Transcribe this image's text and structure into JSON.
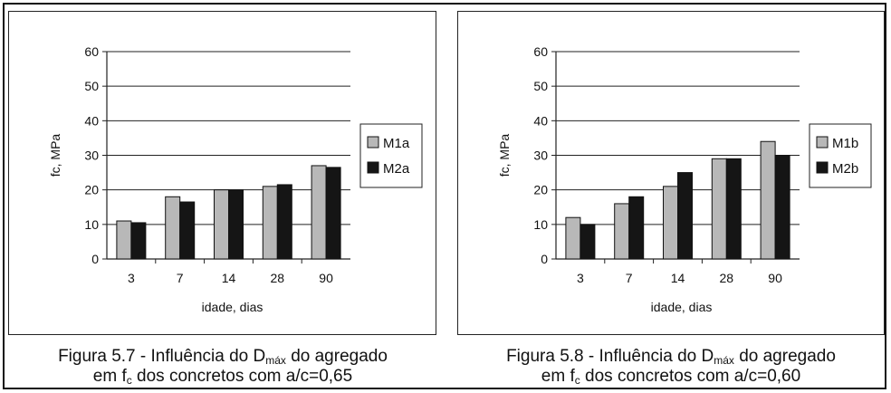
{
  "chart_data": [
    {
      "type": "bar",
      "title": "",
      "xlabel": "idade, dias",
      "ylabel": "fc, MPa",
      "categories": [
        "3",
        "7",
        "14",
        "28",
        "90"
      ],
      "ylim": [
        0,
        60
      ],
      "yticks": [
        "0",
        "10",
        "20",
        "30",
        "40",
        "50",
        "60"
      ],
      "grid": true,
      "legend_position": "right",
      "series": [
        {
          "name": "M1a",
          "values": [
            11,
            18,
            20,
            21,
            27
          ],
          "color": "#b8b8b8"
        },
        {
          "name": "M2a",
          "values": [
            10.5,
            16.5,
            20,
            21.5,
            26.5
          ],
          "color": "#151515"
        }
      ]
    },
    {
      "type": "bar",
      "title": "",
      "xlabel": "idade, dias",
      "ylabel": "fc, MPa",
      "categories": [
        "3",
        "7",
        "14",
        "28",
        "90"
      ],
      "ylim": [
        0,
        60
      ],
      "yticks": [
        "0",
        "10",
        "20",
        "30",
        "40",
        "50",
        "60"
      ],
      "grid": true,
      "legend_position": "right",
      "series": [
        {
          "name": "M1b",
          "values": [
            12,
            16,
            21,
            29,
            34
          ],
          "color": "#b8b8b8"
        },
        {
          "name": "M2b",
          "values": [
            10,
            18,
            25,
            29,
            30
          ],
          "color": "#151515"
        }
      ]
    }
  ],
  "captions": {
    "left": {
      "line1_pre": "Figura 5.7 - Influência do D",
      "line1_sub": "máx",
      "line1_post": " do agregado",
      "line2_pre": "em f",
      "line2_sub": "c",
      "line2_post": " dos concretos com a/c=0,65"
    },
    "right": {
      "line1_pre": "Figura 5.8 - Influência do D",
      "line1_sub": "máx",
      "line1_post": " do agregado",
      "line2_pre": "em f",
      "line2_sub": "c",
      "line2_post": " dos concretos com a/c=0,60"
    }
  }
}
